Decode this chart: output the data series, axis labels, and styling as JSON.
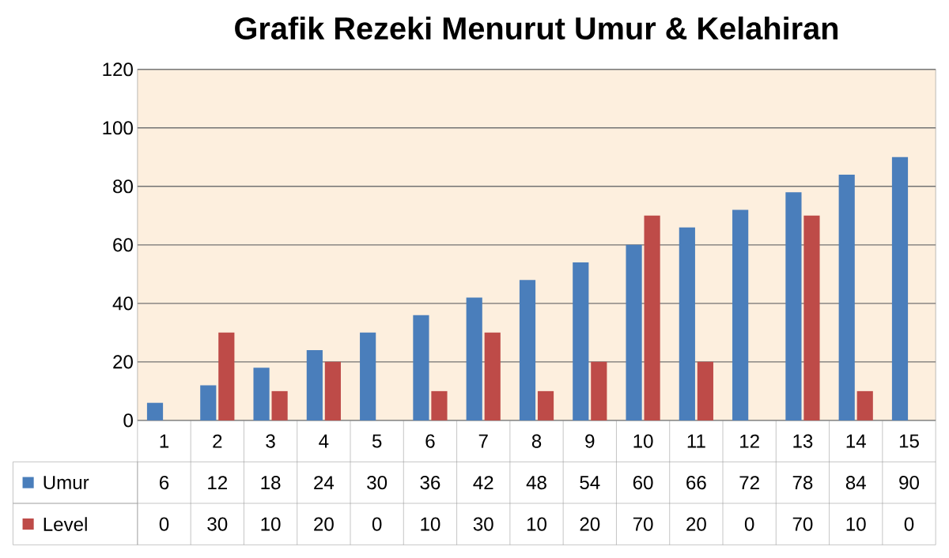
{
  "chart_data": {
    "type": "bar",
    "title": "Grafik Rezeki Menurut Umur & Kelahiran",
    "categories": [
      "1",
      "2",
      "3",
      "4",
      "5",
      "6",
      "7",
      "8",
      "9",
      "10",
      "11",
      "12",
      "13",
      "14",
      "15"
    ],
    "series": [
      {
        "name": "Umur",
        "color": "#4a7ebb",
        "values": [
          6,
          12,
          18,
          24,
          30,
          36,
          42,
          48,
          54,
          60,
          66,
          72,
          78,
          84,
          90
        ]
      },
      {
        "name": "Level",
        "color": "#be4b48",
        "values": [
          0,
          30,
          10,
          20,
          0,
          10,
          30,
          10,
          20,
          70,
          20,
          0,
          70,
          10,
          0
        ]
      }
    ],
    "ylim": [
      0,
      120
    ],
    "yticks": [
      0,
      20,
      40,
      60,
      80,
      100,
      120
    ],
    "grid": "y",
    "data_labels": true,
    "legend": "left"
  }
}
